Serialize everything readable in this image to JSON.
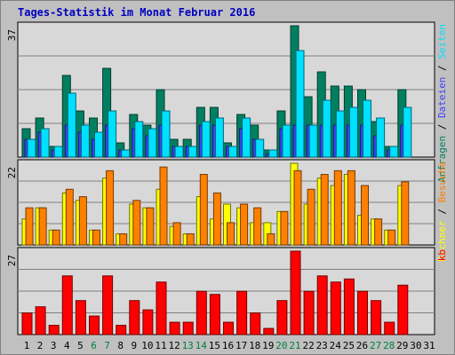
{
  "title": "Tages-Statistik im Monat Februar 2016",
  "chart_data": [
    {
      "type": "bar",
      "panel": "anfragen-dateien-seiten",
      "ymax_label": "37",
      "ylim": [
        0,
        37
      ],
      "series": [
        {
          "name": "Anfragen",
          "color": "#008060",
          "values": [
            8,
            11,
            3,
            23,
            13,
            11,
            25,
            4,
            12,
            9,
            19,
            5,
            5,
            14,
            14,
            4,
            12,
            9,
            2,
            13,
            37,
            17,
            24,
            20,
            20,
            19,
            10,
            3,
            19,
            0,
            0
          ]
        },
        {
          "name": "Dateien",
          "color": "#4040ff",
          "values": [
            5,
            7,
            2,
            9,
            7,
            5,
            9,
            2,
            8,
            6,
            9,
            3,
            3,
            9,
            9,
            3,
            8,
            5,
            1,
            8,
            9,
            9,
            9,
            9,
            9,
            9,
            6,
            2,
            9,
            0,
            0
          ]
        },
        {
          "name": "Seiten",
          "color": "#00e0ff",
          "values": [
            5,
            8,
            3,
            18,
            9,
            7,
            13,
            2,
            10,
            8,
            13,
            3,
            3,
            10,
            11,
            3,
            11,
            5,
            2,
            9,
            30,
            9,
            16,
            13,
            14,
            16,
            11,
            3,
            14,
            0,
            0
          ]
        }
      ],
      "legend": [
        "Anfragen",
        "/",
        "Dateien",
        "/",
        "Seiten"
      ]
    },
    {
      "type": "bar",
      "panel": "rechner-besuche",
      "ymax_label": "22",
      "ylim": [
        0,
        22
      ],
      "series": [
        {
          "name": "Rechner",
          "color": "#ffff00",
          "values": [
            7,
            10,
            4,
            14,
            12,
            4,
            18,
            3,
            11,
            10,
            15,
            5,
            3,
            13,
            7,
            11,
            10,
            6,
            6,
            9,
            22,
            11,
            18,
            16,
            19,
            8,
            7,
            4,
            16,
            0,
            0
          ]
        },
        {
          "name": "Besuche",
          "color": "#ff8000",
          "values": [
            10,
            10,
            4,
            15,
            13,
            4,
            20,
            3,
            12,
            10,
            21,
            6,
            3,
            19,
            14,
            6,
            11,
            10,
            3,
            9,
            20,
            15,
            19,
            20,
            20,
            16,
            7,
            4,
            17,
            0,
            0
          ]
        }
      ],
      "legend": [
        "Rechner",
        "/",
        "Besuche"
      ]
    },
    {
      "type": "bar",
      "panel": "kb",
      "ymax_label": "27",
      "ylim": [
        0,
        27
      ],
      "series": [
        {
          "name": "kb",
          "color": "#ff0000",
          "values": [
            7,
            9,
            3,
            19,
            11,
            6,
            19,
            3,
            11,
            8,
            17,
            4,
            4,
            14,
            13,
            4,
            14,
            7,
            2,
            11,
            27,
            14,
            19,
            17,
            18,
            14,
            11,
            4,
            16,
            0,
            0
          ]
        }
      ],
      "legend": [
        "kb"
      ]
    }
  ],
  "days": [
    "1",
    "2",
    "3",
    "4",
    "5",
    "6",
    "7",
    "8",
    "9",
    "10",
    "11",
    "12",
    "13",
    "14",
    "15",
    "16",
    "17",
    "18",
    "19",
    "20",
    "21",
    "22",
    "23",
    "24",
    "25",
    "26",
    "27",
    "28",
    "29",
    "30",
    "31"
  ],
  "weekend_days": [
    6,
    7,
    13,
    14,
    20,
    21,
    27,
    28
  ],
  "colors": {
    "background": "#c0c0c0",
    "panel": "#d8d8d8",
    "grid": "#808080",
    "weekday_label": "#000000",
    "weekend_label": "#008040",
    "title": "#0000c0",
    "slash": "#000000"
  }
}
